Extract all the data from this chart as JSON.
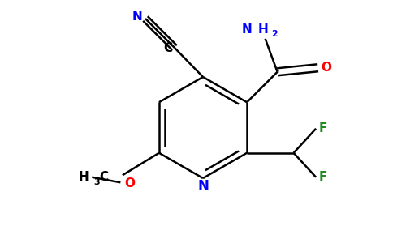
{
  "bg_color": "#ffffff",
  "figsize": [
    4.84,
    3.0
  ],
  "dpi": 100,
  "bond_color": "#000000",
  "bond_width": 1.8,
  "atom_colors": {
    "N": "#0000ff",
    "O": "#ff0000",
    "F": "#228b22",
    "C": "#000000"
  },
  "font_size": 11,
  "font_size_sub": 8
}
